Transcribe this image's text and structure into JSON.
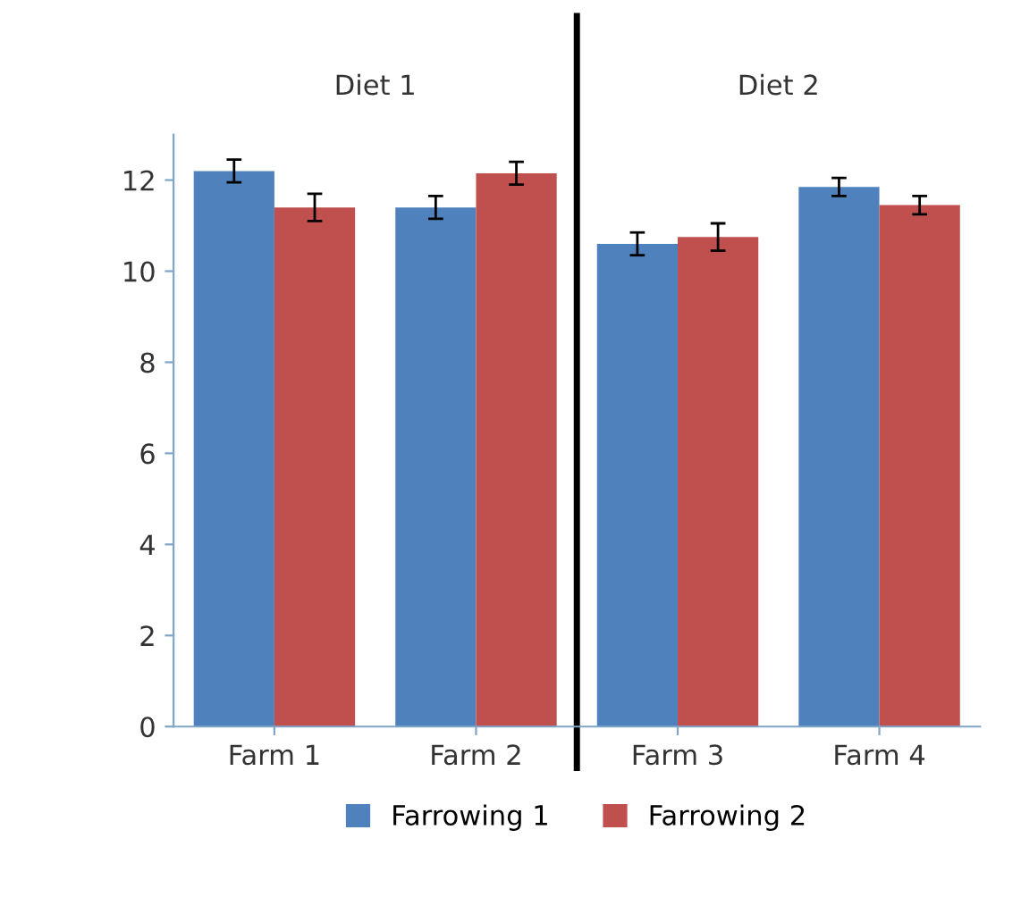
{
  "chart_data": {
    "type": "bar",
    "categories": [
      "Farm 1",
      "Farm 2",
      "Farm 3",
      "Farm 4"
    ],
    "series": [
      {
        "name": "Farrowing 1",
        "color": "#4f81bd",
        "values": [
          12.2,
          11.4,
          10.6,
          11.85
        ],
        "errors": [
          0.25,
          0.25,
          0.25,
          0.2
        ]
      },
      {
        "name": "Farrowing 2",
        "color": "#c0504d",
        "values": [
          11.4,
          12.15,
          10.75,
          11.45
        ],
        "errors": [
          0.3,
          0.25,
          0.3,
          0.2
        ]
      }
    ],
    "ylim": [
      0,
      13
    ],
    "yticks": [
      0,
      2,
      4,
      6,
      8,
      10,
      12
    ],
    "annotations": [
      "Diet 1",
      "Diet 2"
    ],
    "grid": false,
    "legend": "bottom"
  }
}
